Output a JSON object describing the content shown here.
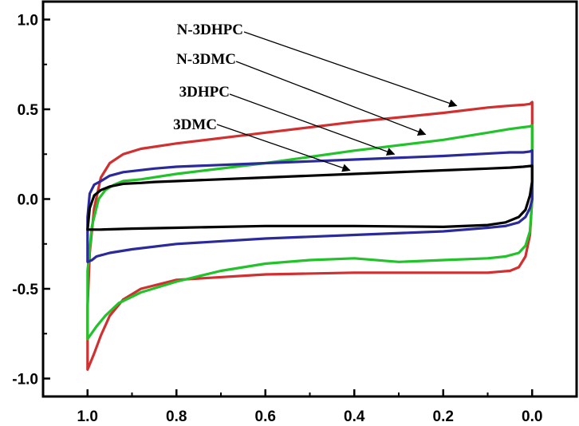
{
  "chart_data": {
    "type": "line",
    "title": "",
    "xlabel": "",
    "ylabel": "",
    "xlim": [
      1.1,
      -0.1
    ],
    "ylim": [
      -1.1,
      1.1
    ],
    "x_ticks": [
      "1.0",
      "0.8",
      "0.6",
      "0.4",
      "0.2",
      "0.0"
    ],
    "x_tick_values": [
      1.0,
      0.8,
      0.6,
      0.4,
      0.2,
      0.0
    ],
    "y_ticks": [
      "1.0",
      "0.5",
      "0.0",
      "-0.5",
      "-1.0"
    ],
    "y_tick_values": [
      1.0,
      0.5,
      0.0,
      -0.5,
      -1.0
    ],
    "grid": false,
    "legend": "none",
    "series": [
      {
        "name": "N-3DHPC",
        "color": "#d03030",
        "x": [
          1.0,
          1.0,
          0.995,
          0.985,
          0.97,
          0.95,
          0.92,
          0.88,
          0.8,
          0.6,
          0.4,
          0.2,
          0.1,
          0.05,
          0.02,
          0.005,
          0.0,
          0.0,
          0.005,
          0.015,
          0.03,
          0.05,
          0.1,
          0.2,
          0.4,
          0.6,
          0.8,
          0.88,
          0.92,
          0.95,
          0.97,
          0.985,
          1.0
        ],
        "y": [
          -0.95,
          -0.6,
          -0.3,
          -0.05,
          0.12,
          0.2,
          0.25,
          0.28,
          0.31,
          0.37,
          0.43,
          0.48,
          0.51,
          0.52,
          0.525,
          0.53,
          0.54,
          0.0,
          -0.2,
          -0.32,
          -0.38,
          -0.4,
          -0.41,
          -0.41,
          -0.41,
          -0.42,
          -0.45,
          -0.5,
          -0.56,
          -0.65,
          -0.76,
          -0.86,
          -0.95
        ]
      },
      {
        "name": "N-3DMC",
        "color": "#22c22a",
        "x": [
          1.0,
          1.0,
          0.99,
          0.975,
          0.96,
          0.94,
          0.92,
          0.88,
          0.8,
          0.6,
          0.4,
          0.2,
          0.1,
          0.05,
          0.02,
          0.005,
          0.0,
          0.0,
          0.005,
          0.015,
          0.03,
          0.06,
          0.1,
          0.2,
          0.3,
          0.4,
          0.5,
          0.6,
          0.7,
          0.8,
          0.88,
          0.93,
          0.96,
          0.98,
          1.0
        ],
        "y": [
          -0.78,
          -0.4,
          -0.15,
          0.0,
          0.05,
          0.08,
          0.1,
          0.11,
          0.14,
          0.2,
          0.27,
          0.33,
          0.37,
          0.39,
          0.4,
          0.405,
          0.41,
          0.0,
          -0.18,
          -0.26,
          -0.3,
          -0.32,
          -0.33,
          -0.34,
          -0.35,
          -0.33,
          -0.34,
          -0.36,
          -0.4,
          -0.46,
          -0.52,
          -0.58,
          -0.65,
          -0.71,
          -0.78
        ]
      },
      {
        "name": "3DHPC",
        "color": "#2a2a9a",
        "x": [
          1.0,
          1.0,
          0.995,
          0.985,
          0.97,
          0.95,
          0.92,
          0.85,
          0.8,
          0.6,
          0.4,
          0.2,
          0.05,
          0.02,
          0.005,
          0.0,
          0.0,
          0.005,
          0.015,
          0.03,
          0.06,
          0.1,
          0.2,
          0.4,
          0.6,
          0.8,
          0.9,
          0.95,
          0.98,
          0.99,
          1.0
        ],
        "y": [
          -0.35,
          -0.1,
          0.03,
          0.08,
          0.1,
          0.13,
          0.15,
          0.17,
          0.18,
          0.2,
          0.22,
          0.24,
          0.26,
          0.26,
          0.265,
          0.27,
          0.0,
          -0.05,
          -0.1,
          -0.13,
          -0.15,
          -0.16,
          -0.18,
          -0.2,
          -0.22,
          -0.25,
          -0.28,
          -0.3,
          -0.32,
          -0.34,
          -0.35
        ]
      },
      {
        "name": "3DMC",
        "color": "#000000",
        "x": [
          1.0,
          0.995,
          0.985,
          0.97,
          0.95,
          0.92,
          0.88,
          0.85,
          0.8,
          0.6,
          0.4,
          0.2,
          0.1,
          0.05,
          0.02,
          0.0,
          0.0,
          0.005,
          0.015,
          0.03,
          0.06,
          0.1,
          0.2,
          0.4,
          0.6,
          0.8,
          0.9,
          0.97,
          1.0
        ],
        "y": [
          -0.17,
          -0.05,
          0.02,
          0.05,
          0.07,
          0.085,
          0.09,
          0.095,
          0.1,
          0.12,
          0.14,
          0.16,
          0.17,
          0.175,
          0.18,
          0.185,
          0.1,
          0.02,
          -0.06,
          -0.1,
          -0.13,
          -0.145,
          -0.155,
          -0.15,
          -0.15,
          -0.16,
          -0.165,
          -0.17,
          -0.17
        ]
      }
    ],
    "annotations": [
      {
        "text": "N-3DHPC",
        "target": {
          "x": 0.17,
          "y": 0.52
        }
      },
      {
        "text": "N-3DMC",
        "target": {
          "x": 0.24,
          "y": 0.36
        }
      },
      {
        "text": "3DHPC",
        "target": {
          "x": 0.31,
          "y": 0.25
        }
      },
      {
        "text": "3DMC",
        "target": {
          "x": 0.41,
          "y": 0.16
        }
      }
    ]
  }
}
